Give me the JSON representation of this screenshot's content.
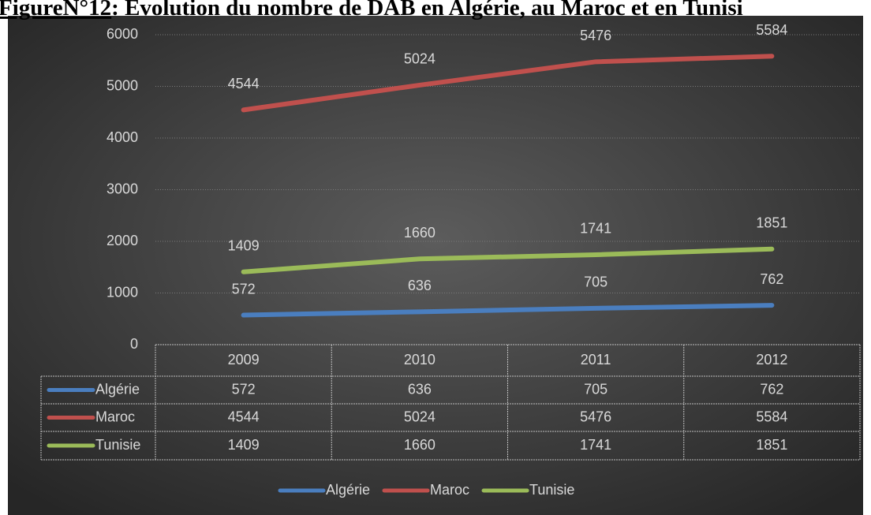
{
  "chart_data": {
    "type": "line",
    "figure_label": "FigureN°12",
    "title": ": Evolution du nombre de DAB en Algérie, au Maroc et en Tunisi",
    "categories": [
      "2009",
      "2010",
      "2011",
      "2012"
    ],
    "series": [
      {
        "name": "Algérie",
        "color": "#4a7ebf",
        "values": [
          572,
          636,
          705,
          762
        ]
      },
      {
        "name": "Maroc",
        "color": "#c0504d",
        "values": [
          4544,
          5024,
          5476,
          5584
        ]
      },
      {
        "name": "Tunisie",
        "color": "#9bbb59",
        "values": [
          1409,
          1660,
          1741,
          1851
        ]
      }
    ],
    "ylim": [
      0,
      6000
    ],
    "yticks": [
      0,
      1000,
      2000,
      3000,
      4000,
      5000,
      6000
    ],
    "grid": true,
    "legend": "bottom",
    "data_table": true
  }
}
